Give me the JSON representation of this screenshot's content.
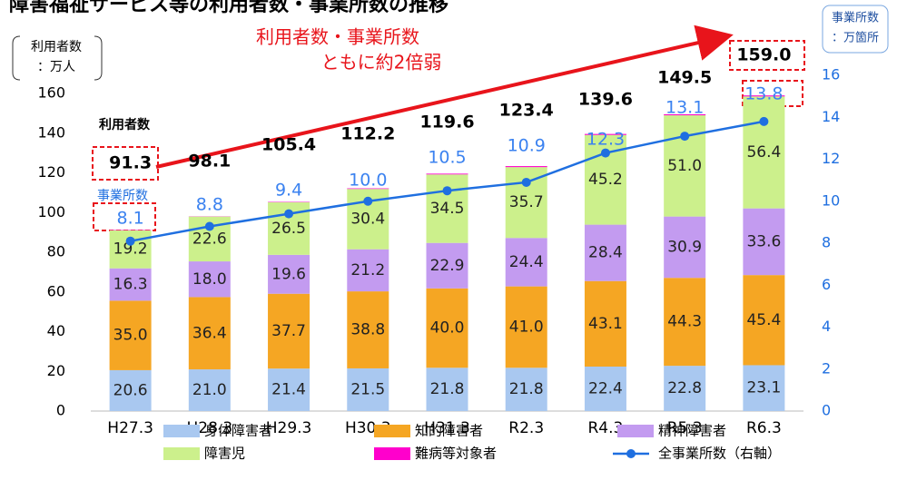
{
  "chart_data": {
    "type": "bar",
    "stacked": true,
    "title": "障害福祉サービス等の利用者数・事業所数の推移",
    "annotation": [
      "利用者数・事業所数",
      "ともに約2倍弱"
    ],
    "ylabel": [
      "利用者数",
      "：万人"
    ],
    "y2label": [
      "事業所数",
      "：万箇所"
    ],
    "total_caption": "利用者数",
    "line_caption": "事業所数",
    "categories": [
      "H27.3",
      "H28.3",
      "H29.3",
      "H30.3",
      "H31.3",
      "R2.3",
      "R4.3",
      "R5.3",
      "R6.3"
    ],
    "series": [
      {
        "name": "身体障害者",
        "color": "#a9c8f0",
        "values": [
          20.6,
          21.0,
          21.4,
          21.5,
          21.8,
          21.8,
          22.4,
          22.8,
          23.1
        ],
        "value_labels": [
          "20.6",
          "21.0",
          "21.4",
          "21.5",
          "21.8",
          "21.8",
          "22.4",
          "22.8",
          "23.1"
        ]
      },
      {
        "name": "知的障害者",
        "color": "#f5a623",
        "values": [
          35.0,
          36.4,
          37.7,
          38.8,
          40.0,
          41.0,
          43.1,
          44.3,
          45.4
        ],
        "value_labels": [
          "35.0",
          "36.4",
          "37.7",
          "38.8",
          "40.0",
          "41.0",
          "43.1",
          "44.3",
          "45.4"
        ]
      },
      {
        "name": "精神障害者",
        "color": "#c39bf0",
        "values": [
          16.3,
          18.0,
          19.6,
          21.2,
          22.9,
          24.4,
          28.4,
          30.9,
          33.6
        ],
        "value_labels": [
          "16.3",
          "18.0",
          "19.6",
          "21.2",
          "22.9",
          "24.4",
          "28.4",
          "30.9",
          "33.6"
        ]
      },
      {
        "name": "障害児",
        "color": "#ccf08c",
        "values": [
          19.2,
          22.6,
          26.5,
          30.4,
          34.5,
          35.7,
          45.2,
          51.0,
          56.4
        ],
        "value_labels": [
          "19.2",
          "22.6",
          "26.5",
          "30.4",
          "34.5",
          "35.7",
          "45.2",
          "51.0",
          "56.4"
        ]
      },
      {
        "name": "難病等対象者",
        "color": "#ff00cc",
        "values": [
          0.2,
          0.1,
          0.2,
          0.3,
          0.4,
          0.5,
          0.5,
          0.5,
          0.5
        ]
      },
      {
        "name": "全事業所数（右軸）",
        "type": "line",
        "axis": "y2",
        "color": "#1f6fe0",
        "values": [
          8.1,
          8.8,
          9.4,
          10.0,
          10.5,
          10.9,
          12.3,
          13.1,
          13.8
        ],
        "value_labels": [
          "8.1",
          "8.8",
          "9.4",
          "10.0",
          "10.5",
          "10.9",
          "12.3",
          "13.1",
          "13.8"
        ]
      }
    ],
    "totals": [
      91.3,
      98.1,
      105.4,
      112.2,
      119.6,
      123.4,
      139.6,
      149.5,
      159.0
    ],
    "total_labels": [
      "91.3",
      "98.1",
      "105.4",
      "112.2",
      "119.6",
      "123.4",
      "139.6",
      "149.5",
      "159.0"
    ],
    "ylim": [
      0,
      160
    ],
    "yticks": [
      0,
      20,
      40,
      60,
      80,
      100,
      120,
      140,
      160
    ],
    "y2lim": [
      0,
      16
    ],
    "y2ticks": [
      0,
      2,
      4,
      6,
      8,
      10,
      12,
      14,
      16
    ]
  }
}
